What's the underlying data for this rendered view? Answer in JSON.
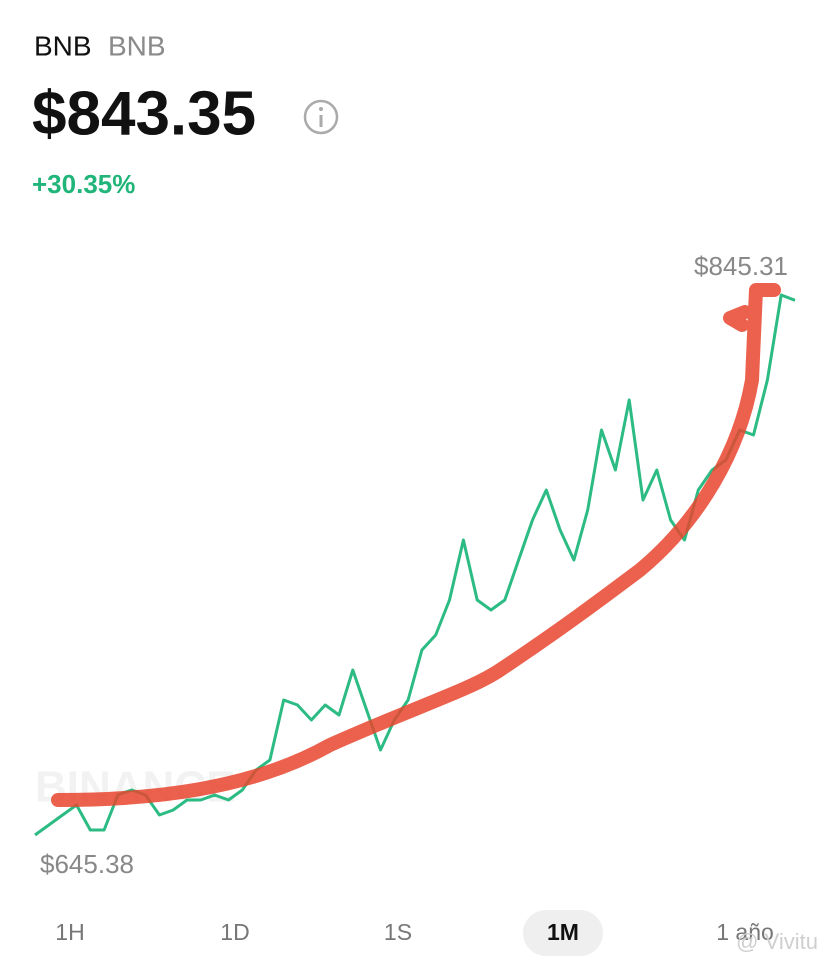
{
  "header": {
    "symbol": "BNB",
    "name": "BNB",
    "price": "$843.35",
    "change": "+30.35%"
  },
  "chart_data": {
    "type": "line",
    "color": "#2dbb84",
    "values": [
      645.38,
      649.08,
      652.78,
      656.49,
      647.23,
      647.23,
      660.19,
      662.04,
      660.19,
      652.78,
      654.64,
      658.34,
      658.34,
      660.19,
      658.34,
      662.04,
      669.45,
      673.15,
      695.36,
      693.51,
      687.96,
      693.51,
      689.81,
      706.47,
      691.66,
      676.85,
      687.96,
      695.36,
      713.87,
      719.43,
      732.39,
      754.6,
      732.39,
      728.68,
      732.39,
      747.19,
      762.0,
      773.11,
      758.3,
      747.19,
      765.71,
      795.33,
      780.52,
      806.43,
      769.41,
      780.52,
      762.0,
      754.6,
      773.11,
      780.52,
      784.22,
      795.33,
      793.48,
      813.84,
      845.31,
      843.35
    ],
    "max_label": {
      "value": 845.31,
      "label": "$845.31"
    },
    "min_label": {
      "value": 645.38,
      "label": "$645.38"
    },
    "watermark": "BINANCE"
  },
  "ranges": {
    "items": [
      "1H",
      "1D",
      "1S",
      "1M",
      "1 año"
    ],
    "selected": 3
  },
  "credit": "@ Vivitu"
}
